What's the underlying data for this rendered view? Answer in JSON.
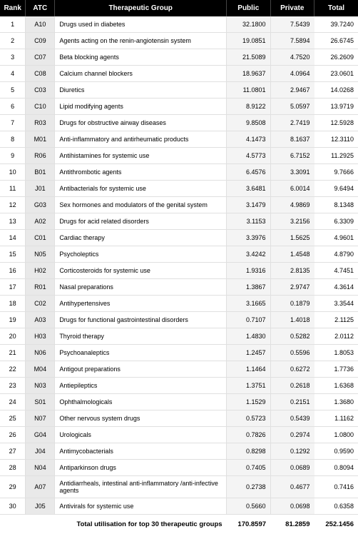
{
  "table": {
    "columns": [
      "Rank",
      "ATC",
      "Therapeutic Group",
      "Public",
      "Private",
      "Total"
    ],
    "rows": [
      {
        "rank": "1",
        "atc": "A10",
        "tg": "Drugs used in diabetes",
        "public": "32.1800",
        "private": "7.5439",
        "total": "39.7240"
      },
      {
        "rank": "2",
        "atc": "C09",
        "tg": "Agents acting on the renin-angiotensin system",
        "public": "19.0851",
        "private": "7.5894",
        "total": "26.6745"
      },
      {
        "rank": "3",
        "atc": "C07",
        "tg": "Beta blocking agents",
        "public": "21.5089",
        "private": "4.7520",
        "total": "26.2609"
      },
      {
        "rank": "4",
        "atc": "C08",
        "tg": "Calcium channel blockers",
        "public": "18.9637",
        "private": "4.0964",
        "total": "23.0601"
      },
      {
        "rank": "5",
        "atc": "C03",
        "tg": "Diuretics",
        "public": "11.0801",
        "private": "2.9467",
        "total": "14.0268"
      },
      {
        "rank": "6",
        "atc": "C10",
        "tg": "Lipid modifying agents",
        "public": "8.9122",
        "private": "5.0597",
        "total": "13.9719"
      },
      {
        "rank": "7",
        "atc": "R03",
        "tg": "Drugs for obstructive airway diseases",
        "public": "9.8508",
        "private": "2.7419",
        "total": "12.5928"
      },
      {
        "rank": "8",
        "atc": "M01",
        "tg": "Anti-inflammatory and antirheumatic products",
        "public": "4.1473",
        "private": "8.1637",
        "total": "12.3110"
      },
      {
        "rank": "9",
        "atc": "R06",
        "tg": "Antihistamines for systemic use",
        "public": "4.5773",
        "private": "6.7152",
        "total": "11.2925"
      },
      {
        "rank": "10",
        "atc": "B01",
        "tg": "Antithrombotic agents",
        "public": "6.4576",
        "private": "3.3091",
        "total": "9.7666"
      },
      {
        "rank": "11",
        "atc": "J01",
        "tg": "Antibacterials for systemic use",
        "public": "3.6481",
        "private": "6.0014",
        "total": "9.6494"
      },
      {
        "rank": "12",
        "atc": "G03",
        "tg": "Sex hormones and modulators of the genital system",
        "public": "3.1479",
        "private": "4.9869",
        "total": "8.1348"
      },
      {
        "rank": "13",
        "atc": "A02",
        "tg": "Drugs for acid related disorders",
        "public": "3.1153",
        "private": "3.2156",
        "total": "6.3309"
      },
      {
        "rank": "14",
        "atc": "C01",
        "tg": "Cardiac therapy",
        "public": "3.3976",
        "private": "1.5625",
        "total": "4.9601"
      },
      {
        "rank": "15",
        "atc": "N05",
        "tg": "Psycholeptics",
        "public": "3.4242",
        "private": "1.4548",
        "total": "4.8790"
      },
      {
        "rank": "16",
        "atc": "H02",
        "tg": "Corticosteroids for systemic use",
        "public": "1.9316",
        "private": "2.8135",
        "total": "4.7451"
      },
      {
        "rank": "17",
        "atc": "R01",
        "tg": "Nasal preparations",
        "public": "1.3867",
        "private": "2.9747",
        "total": "4.3614"
      },
      {
        "rank": "18",
        "atc": "C02",
        "tg": "Antihypertensives",
        "public": "3.1665",
        "private": "0.1879",
        "total": "3.3544"
      },
      {
        "rank": "19",
        "atc": "A03",
        "tg": "Drugs for functional gastrointestinal disorders",
        "public": "0.7107",
        "private": "1.4018",
        "total": "2.1125"
      },
      {
        "rank": "20",
        "atc": "H03",
        "tg": "Thyroid therapy",
        "public": "1.4830",
        "private": "0.5282",
        "total": "2.0112"
      },
      {
        "rank": "21",
        "atc": "N06",
        "tg": "Psychoanaleptics",
        "public": "1.2457",
        "private": "0.5596",
        "total": "1.8053"
      },
      {
        "rank": "22",
        "atc": "M04",
        "tg": "Antigout preparations",
        "public": "1.1464",
        "private": "0.6272",
        "total": "1.7736"
      },
      {
        "rank": "23",
        "atc": "N03",
        "tg": "Antiepileptics",
        "public": "1.3751",
        "private": "0.2618",
        "total": "1.6368"
      },
      {
        "rank": "24",
        "atc": "S01",
        "tg": "Ophthalmologicals",
        "public": "1.1529",
        "private": "0.2151",
        "total": "1.3680"
      },
      {
        "rank": "25",
        "atc": "N07",
        "tg": "Other nervous system drugs",
        "public": "0.5723",
        "private": "0.5439",
        "total": "1.1162"
      },
      {
        "rank": "26",
        "atc": "G04",
        "tg": "Urologicals",
        "public": "0.7826",
        "private": "0.2974",
        "total": "1.0800"
      },
      {
        "rank": "27",
        "atc": "J04",
        "tg": "Antimycobacterials",
        "public": "0.8298",
        "private": "0.1292",
        "total": "0.9590"
      },
      {
        "rank": "28",
        "atc": "N04",
        "tg": "Antiparkinson drugs",
        "public": "0.7405",
        "private": "0.0689",
        "total": "0.8094"
      },
      {
        "rank": "29",
        "atc": "A07",
        "tg": "Antidiarrheals, intestinal anti-inflammatory /anti-infective agents",
        "public": "0.2738",
        "private": "0.4677",
        "total": "0.7416"
      },
      {
        "rank": "30",
        "atc": "J05",
        "tg": "Antivirals for systemic use",
        "public": "0.5660",
        "private": "0.0698",
        "total": "0.6358"
      }
    ],
    "footer": {
      "label": "Total utilisation for top 30 therapeutic groups",
      "public": "170.8597",
      "private": "81.2859",
      "total": "252.1456"
    }
  }
}
